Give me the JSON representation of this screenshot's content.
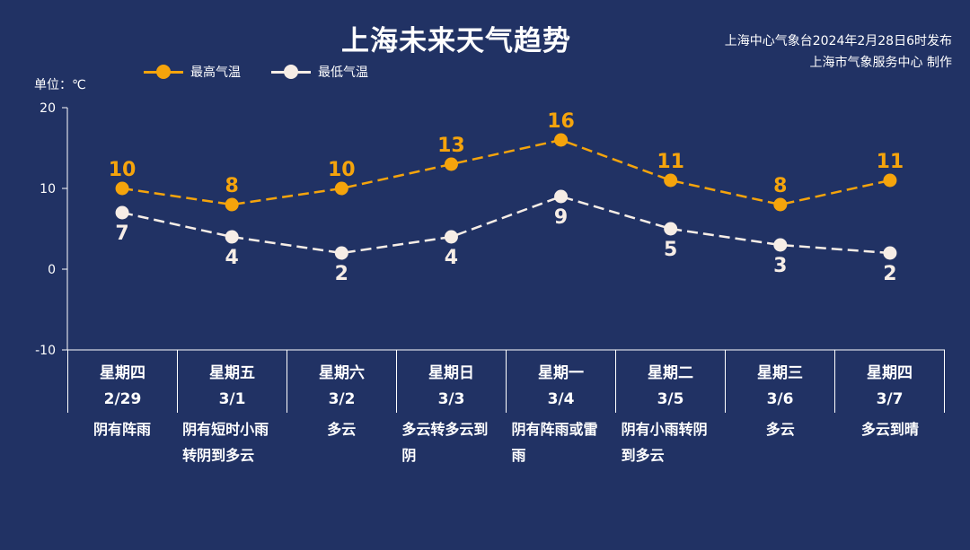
{
  "title": "上海未来天气趋势",
  "issuer": {
    "line1": "上海中心气象台2024年2月28日6时发布",
    "line2": "上海市气象服务中心 制作"
  },
  "unit_label": "单位：℃",
  "legend": {
    "high": "最高气温",
    "low": "最低气温"
  },
  "colors": {
    "background": "#213264",
    "high": "#f5a40c",
    "low": "#f6ede6",
    "axis": "#ffffff"
  },
  "days": [
    {
      "weekday": "星期四",
      "date": "2/29",
      "weather": "阴有阵雨"
    },
    {
      "weekday": "星期五",
      "date": "3/1",
      "weather": "阴有短时小雨转阴到多云"
    },
    {
      "weekday": "星期六",
      "date": "3/2",
      "weather": "多云"
    },
    {
      "weekday": "星期日",
      "date": "3/3",
      "weather": "多云转多云到阴"
    },
    {
      "weekday": "星期一",
      "date": "3/4",
      "weather": "阴有阵雨或雷雨"
    },
    {
      "weekday": "星期二",
      "date": "3/5",
      "weather": "阴有小雨转阴到多云"
    },
    {
      "weekday": "星期三",
      "date": "3/6",
      "weather": "多云"
    },
    {
      "weekday": "星期四",
      "date": "3/7",
      "weather": "多云到晴"
    }
  ],
  "chart_data": {
    "type": "line",
    "title": "上海未来天气趋势",
    "ylabel": "单位：℃",
    "categories": [
      "2/29",
      "3/1",
      "3/2",
      "3/3",
      "3/4",
      "3/5",
      "3/6",
      "3/7"
    ],
    "series": [
      {
        "name": "最高气温",
        "values": [
          10,
          8,
          10,
          13,
          16,
          11,
          8,
          11
        ]
      },
      {
        "name": "最低气温",
        "values": [
          7,
          4,
          2,
          4,
          9,
          5,
          3,
          2
        ]
      }
    ],
    "ylim": [
      -10,
      20
    ],
    "yticks": [
      -10,
      0,
      10,
      20
    ],
    "grid": false,
    "legend_position": "top-left",
    "line_style": "dashed"
  }
}
